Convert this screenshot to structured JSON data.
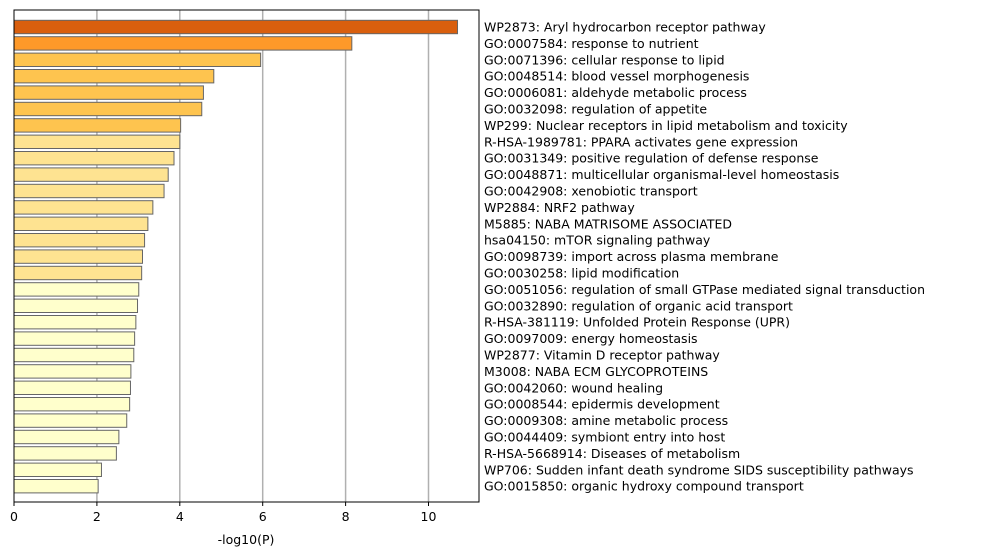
{
  "chart_data": {
    "type": "bar",
    "orientation": "horizontal",
    "xlabel": "-log10(P)",
    "xlim": [
      0,
      11.2
    ],
    "xticks": [
      0,
      2,
      4,
      6,
      8,
      10
    ],
    "grid": "vertical",
    "categories": [
      "WP2873: Aryl hydrocarbon receptor pathway",
      "GO:0007584: response to nutrient",
      "GO:0071396: cellular response to lipid",
      "GO:0048514: blood vessel morphogenesis",
      "GO:0006081: aldehyde metabolic process",
      "GO:0032098: regulation of appetite",
      "WP299: Nuclear receptors in lipid metabolism and toxicity",
      "R-HSA-1989781: PPARA activates gene expression",
      "GO:0031349: positive regulation of defense response",
      "GO:0048871: multicellular organismal-level homeostasis",
      "GO:0042908: xenobiotic transport",
      "WP2884: NRF2 pathway",
      "M5885: NABA MATRISOME ASSOCIATED",
      "hsa04150: mTOR signaling pathway",
      "GO:0098739: import across plasma membrane",
      "GO:0030258: lipid modification",
      "GO:0051056: regulation of small GTPase mediated signal transduction",
      "GO:0032890: regulation of organic acid transport",
      "R-HSA-381119: Unfolded Protein Response (UPR)",
      "GO:0097009: energy homeostasis",
      "WP2877: Vitamin D receptor pathway",
      "M3008: NABA ECM GLYCOPROTEINS",
      "GO:0042060: wound healing",
      "GO:0008544: epidermis development",
      "GO:0009308: amine metabolic process",
      "GO:0044409: symbiont entry into host",
      "R-HSA-5668914: Diseases of metabolism",
      "WP706: Sudden infant death syndrome SIDS susceptibility pathways",
      "GO:0015850: organic hydroxy compound transport"
    ],
    "values": [
      10.7,
      8.15,
      5.95,
      4.82,
      4.57,
      4.53,
      4.02,
      4.0,
      3.86,
      3.72,
      3.62,
      3.35,
      3.23,
      3.15,
      3.1,
      3.08,
      3.01,
      2.98,
      2.94,
      2.91,
      2.89,
      2.82,
      2.81,
      2.79,
      2.72,
      2.53,
      2.47,
      2.11,
      2.03
    ],
    "colors": [
      "#d95f0e",
      "#fe9929",
      "#fec44f",
      "#fec44f",
      "#fec44f",
      "#fec44f",
      "#fec44f",
      "#fee391",
      "#fee391",
      "#fee391",
      "#fee391",
      "#fee391",
      "#fee391",
      "#fee391",
      "#fee391",
      "#fee391",
      "#ffffcc",
      "#ffffcc",
      "#ffffcc",
      "#ffffcc",
      "#ffffcc",
      "#ffffcc",
      "#ffffcc",
      "#ffffcc",
      "#ffffcc",
      "#ffffcc",
      "#ffffcc",
      "#ffffcc",
      "#ffffcc"
    ],
    "bar_edge_color": "#666666",
    "grid_color": "#b0b0b0"
  }
}
